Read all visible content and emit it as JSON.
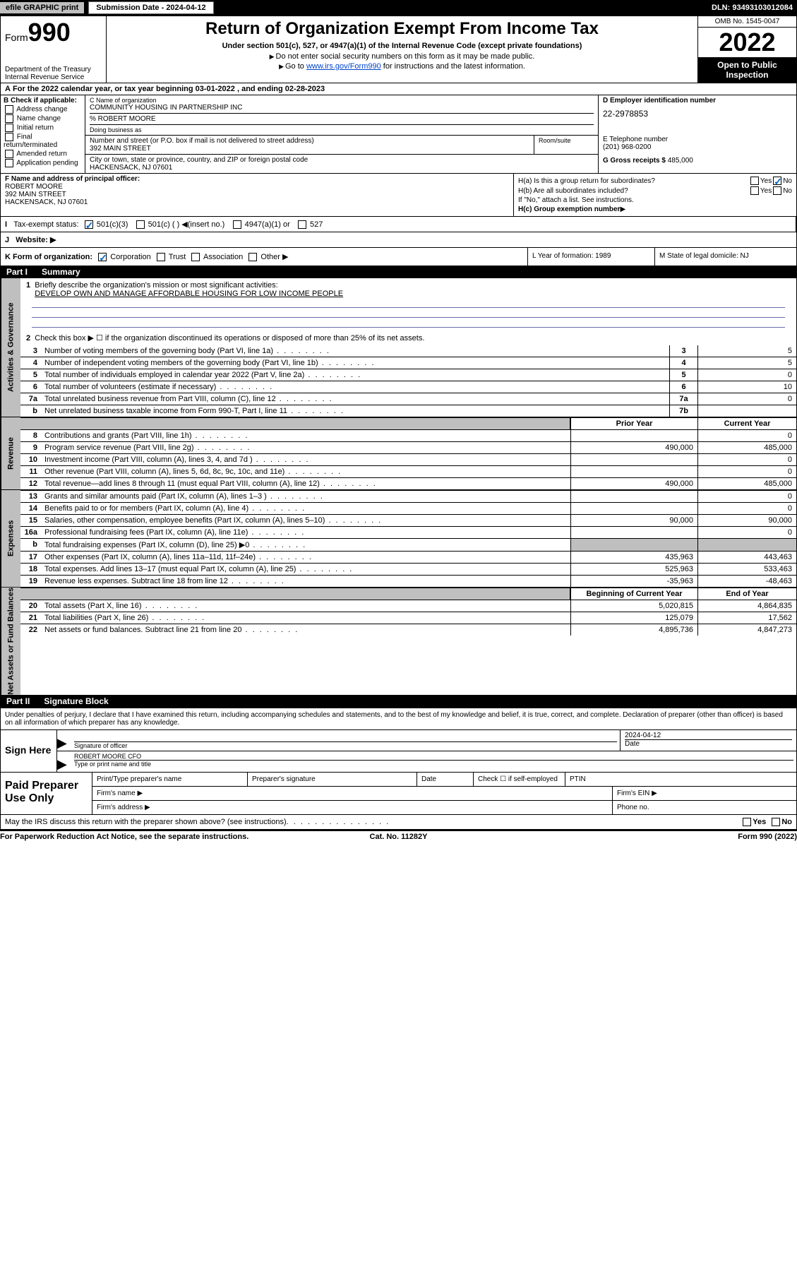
{
  "topbar": {
    "efile": "efile GRAPHIC print",
    "submission": "Submission Date - 2024-04-12",
    "dln": "DLN: 93493103012084"
  },
  "header": {
    "form_prefix": "Form",
    "form_number": "990",
    "title": "Return of Organization Exempt From Income Tax",
    "subtitle": "Under section 501(c), 527, or 4947(a)(1) of the Internal Revenue Code (except private foundations)",
    "note1": "Do not enter social security numbers on this form as it may be made public.",
    "note2_prefix": "Go to ",
    "note2_link": "www.irs.gov/Form990",
    "note2_suffix": " for instructions and the latest information.",
    "dept": "Department of the Treasury",
    "irs": "Internal Revenue Service",
    "omb": "OMB No. 1545-0047",
    "year": "2022",
    "open_public": "Open to Public Inspection"
  },
  "section_a": {
    "text_prefix": "For the 2022 calendar year, or tax year beginning ",
    "begin": "03-01-2022",
    "mid": " , and ending ",
    "end": "02-28-2023"
  },
  "section_b": {
    "label": "B Check if applicable:",
    "opts": [
      "Address change",
      "Name change",
      "Initial return",
      "Final return/terminated",
      "Amended return",
      "Application pending"
    ]
  },
  "section_c": {
    "name_label": "C Name of organization",
    "org_name": "COMMUNITY HOUSING IN PARTNERSHIP INC",
    "care_of": "% ROBERT MOORE",
    "dba_label": "Doing business as",
    "street_label": "Number and street (or P.O. box if mail is not delivered to street address)",
    "room_label": "Room/suite",
    "street": "392 MAIN STREET",
    "city_label": "City or town, state or province, country, and ZIP or foreign postal code",
    "city": "HACKENSACK, NJ  07601"
  },
  "section_d": {
    "label": "D Employer identification number",
    "ein": "22-2978853"
  },
  "section_e": {
    "label": "E Telephone number",
    "phone": "(201) 968-0200"
  },
  "section_g": {
    "label": "G Gross receipts $ ",
    "val": "485,000"
  },
  "section_f": {
    "label": "F Name and address of principal officer:",
    "name": "ROBERT MOORE",
    "addr1": "392 MAIN STREET",
    "addr2": "HACKENSACK, NJ  07601"
  },
  "section_h": {
    "ha": "H(a)  Is this a group return for subordinates?",
    "hb": "H(b)  Are all subordinates included?",
    "hb_note": "If \"No,\" attach a list. See instructions.",
    "hc": "H(c)  Group exemption number ",
    "yes": "Yes",
    "no": "No"
  },
  "section_i": {
    "label": "Tax-exempt status:",
    "opt1": "501(c)(3)",
    "opt2": "501(c) (   ) ",
    "opt2_suffix": "(insert no.)",
    "opt3": "4947(a)(1) or",
    "opt4": "527"
  },
  "section_j": {
    "label": "Website: "
  },
  "section_k": {
    "label": "K Form of organization:",
    "opts": [
      "Corporation",
      "Trust",
      "Association",
      "Other"
    ]
  },
  "section_l": {
    "text": "L Year of formation: 1989"
  },
  "section_m": {
    "text": "M State of legal domicile: NJ"
  },
  "part1": {
    "title": "Part I",
    "subtitle": "Summary",
    "side_labels": {
      "ag": "Activities & Governance",
      "rev": "Revenue",
      "exp": "Expenses",
      "nafb": "Net Assets or Fund Balances"
    },
    "line1_label": "Briefly describe the organization's mission or most significant activities:",
    "line1_text": "DEVELOP OWN AND MANAGE AFFORDABLE HOUSING FOR LOW INCOME PEOPLE",
    "line2": "Check this box ▶ ☐  if the organization discontinued its operations or disposed of more than 25% of its net assets.",
    "rows_single": [
      {
        "n": "3",
        "t": "Number of voting members of the governing body (Part VI, line 1a)",
        "lbl": "3",
        "v": "5"
      },
      {
        "n": "4",
        "t": "Number of independent voting members of the governing body (Part VI, line 1b)",
        "lbl": "4",
        "v": "5"
      },
      {
        "n": "5",
        "t": "Total number of individuals employed in calendar year 2022 (Part V, line 2a)",
        "lbl": "5",
        "v": "0"
      },
      {
        "n": "6",
        "t": "Total number of volunteers (estimate if necessary)",
        "lbl": "6",
        "v": "10"
      },
      {
        "n": "7a",
        "t": "Total unrelated business revenue from Part VIII, column (C), line 12",
        "lbl": "7a",
        "v": "0"
      },
      {
        "n": "b",
        "t": "Net unrelated business taxable income from Form 990-T, Part I, line 11",
        "lbl": "7b",
        "v": ""
      }
    ],
    "col_headers": {
      "prior": "Prior Year",
      "current": "Current Year",
      "begin": "Beginning of Current Year",
      "end": "End of Year"
    },
    "revenue_rows": [
      {
        "n": "8",
        "t": "Contributions and grants (Part VIII, line 1h)",
        "c1": "",
        "c2": "0"
      },
      {
        "n": "9",
        "t": "Program service revenue (Part VIII, line 2g)",
        "c1": "490,000",
        "c2": "485,000"
      },
      {
        "n": "10",
        "t": "Investment income (Part VIII, column (A), lines 3, 4, and 7d )",
        "c1": "",
        "c2": "0"
      },
      {
        "n": "11",
        "t": "Other revenue (Part VIII, column (A), lines 5, 6d, 8c, 9c, 10c, and 11e)",
        "c1": "",
        "c2": "0"
      },
      {
        "n": "12",
        "t": "Total revenue—add lines 8 through 11 (must equal Part VIII, column (A), line 12)",
        "c1": "490,000",
        "c2": "485,000"
      }
    ],
    "expense_rows": [
      {
        "n": "13",
        "t": "Grants and similar amounts paid (Part IX, column (A), lines 1–3 )",
        "c1": "",
        "c2": "0"
      },
      {
        "n": "14",
        "t": "Benefits paid to or for members (Part IX, column (A), line 4)",
        "c1": "",
        "c2": "0"
      },
      {
        "n": "15",
        "t": "Salaries, other compensation, employee benefits (Part IX, column (A), lines 5–10)",
        "c1": "90,000",
        "c2": "90,000"
      },
      {
        "n": "16a",
        "t": "Professional fundraising fees (Part IX, column (A), line 11e)",
        "c1": "",
        "c2": "0"
      },
      {
        "n": "b",
        "t": "Total fundraising expenses (Part IX, column (D), line 25) ▶0",
        "c1": "grey",
        "c2": "grey"
      },
      {
        "n": "17",
        "t": "Other expenses (Part IX, column (A), lines 11a–11d, 11f–24e)",
        "c1": "435,963",
        "c2": "443,463"
      },
      {
        "n": "18",
        "t": "Total expenses. Add lines 13–17 (must equal Part IX, column (A), line 25)",
        "c1": "525,963",
        "c2": "533,463"
      },
      {
        "n": "19",
        "t": "Revenue less expenses. Subtract line 18 from line 12",
        "c1": "-35,963",
        "c2": "-48,463"
      }
    ],
    "nafb_rows": [
      {
        "n": "20",
        "t": "Total assets (Part X, line 16)",
        "c1": "5,020,815",
        "c2": "4,864,835"
      },
      {
        "n": "21",
        "t": "Total liabilities (Part X, line 26)",
        "c1": "125,079",
        "c2": "17,562"
      },
      {
        "n": "22",
        "t": "Net assets or fund balances. Subtract line 21 from line 20",
        "c1": "4,895,736",
        "c2": "4,847,273"
      }
    ]
  },
  "part2": {
    "title": "Part II",
    "subtitle": "Signature Block",
    "declaration": "Under penalties of perjury, I declare that I have examined this return, including accompanying schedules and statements, and to the best of my knowledge and belief, it is true, correct, and complete. Declaration of preparer (other than officer) is based on all information of which preparer has any knowledge.",
    "sign_here": "Sign Here",
    "sig_officer": "Signature of officer",
    "sig_date": "Date",
    "sig_date_val": "2024-04-12",
    "officer_name": "ROBERT MOORE  CFO",
    "type_name": "Type or print name and title",
    "paid_label": "Paid Preparer Use Only",
    "prep_name": "Print/Type preparer's name",
    "prep_sig": "Preparer's signature",
    "prep_date": "Date",
    "check_if": "Check ☐ if self-employed",
    "ptin": "PTIN",
    "firm_name": "Firm's name  ▶",
    "firm_ein": "Firm's EIN ▶",
    "firm_addr": "Firm's address ▶",
    "phone": "Phone no.",
    "may_irs": "May the IRS discuss this return with the preparer shown above? (see instructions)"
  },
  "footer": {
    "left": "For Paperwork Reduction Act Notice, see the separate instructions.",
    "center": "Cat. No. 11282Y",
    "right": "Form 990 (2022)"
  }
}
